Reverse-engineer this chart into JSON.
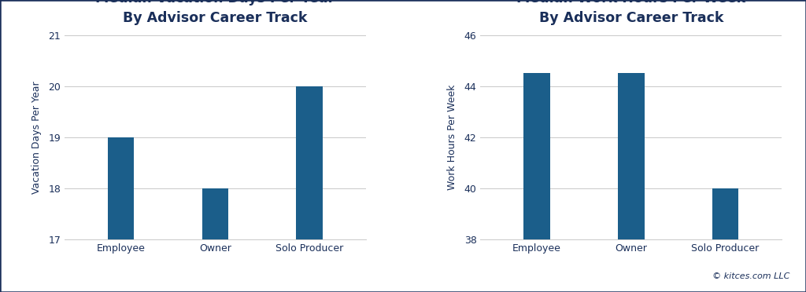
{
  "chart1": {
    "title": "Median Vacation Days Per Year\nBy Advisor Career Track",
    "categories": [
      "Employee",
      "Owner",
      "Solo Producer"
    ],
    "values": [
      19,
      18,
      20
    ],
    "ylabel": "Vacation Days Per Year",
    "ylim": [
      17,
      21
    ],
    "yticks": [
      17,
      18,
      19,
      20,
      21
    ],
    "bar_color": "#1B5E8A"
  },
  "chart2": {
    "title": "Median Work Hours Per Week\nBy Advisor Career Track",
    "categories": [
      "Employee",
      "Owner",
      "Solo Producer"
    ],
    "values": [
      44.5,
      44.5,
      40
    ],
    "ylabel": "Work Hours Per Week",
    "ylim": [
      38,
      46
    ],
    "yticks": [
      38,
      40,
      42,
      44,
      46
    ],
    "bar_color": "#1B5E8A"
  },
  "background_color": "#FFFFFF",
  "text_color": "#1A2F5A",
  "title_fontsize": 12.5,
  "label_fontsize": 9,
  "tick_fontsize": 9,
  "bar_width": 0.28,
  "copyright_text": "© kitces.com LLC",
  "grid_color": "#C8C8C8",
  "outer_border_color": "#1A2F5A",
  "outer_border_lw": 1.8
}
